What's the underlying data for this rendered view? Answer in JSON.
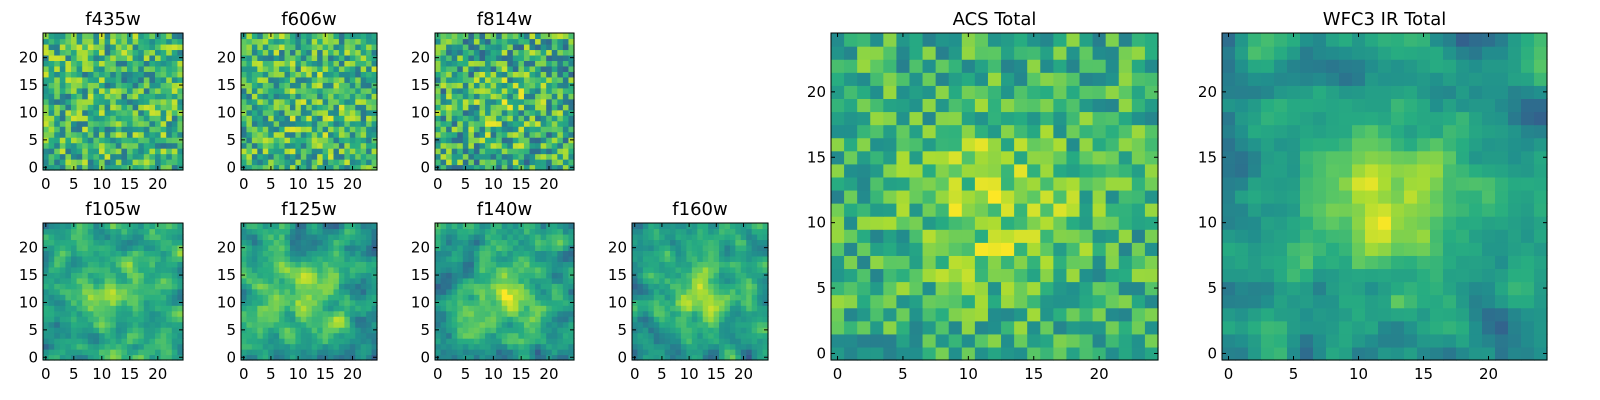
{
  "chart_data": [
    {
      "type": "heatmap",
      "title": "f435w",
      "xlim": [
        0,
        24
      ],
      "ylim": [
        0,
        24
      ],
      "xticks": [
        "0",
        "5",
        "10",
        "15",
        "20"
      ],
      "yticks": [
        "0",
        "5",
        "10",
        "15",
        "20"
      ],
      "colormap": "viridis",
      "value_range": [
        0,
        1
      ],
      "seed": 11,
      "blob": 0.0,
      "noise": 0.55,
      "base": 0.66,
      "blur": 0
    },
    {
      "type": "heatmap",
      "title": "f606w",
      "xlim": [
        0,
        24
      ],
      "ylim": [
        0,
        24
      ],
      "xticks": [
        "0",
        "5",
        "10",
        "15",
        "20"
      ],
      "yticks": [
        "0",
        "5",
        "10",
        "15",
        "20"
      ],
      "colormap": "viridis",
      "value_range": [
        0,
        1
      ],
      "seed": 23,
      "blob": 0.05,
      "noise": 0.55,
      "base": 0.66,
      "blur": 0
    },
    {
      "type": "heatmap",
      "title": "f814w",
      "xlim": [
        0,
        24
      ],
      "ylim": [
        0,
        24
      ],
      "xticks": [
        "0",
        "5",
        "10",
        "15",
        "20"
      ],
      "yticks": [
        "0",
        "5",
        "10",
        "15",
        "20"
      ],
      "colormap": "viridis",
      "value_range": [
        0,
        1
      ],
      "seed": 37,
      "blob": 0.1,
      "noise": 0.6,
      "base": 0.62,
      "blur": 0
    },
    {
      "type": "heatmap",
      "title": "f105w",
      "xlim": [
        0,
        24
      ],
      "ylim": [
        0,
        24
      ],
      "xticks": [
        "0",
        "5",
        "10",
        "15",
        "20"
      ],
      "yticks": [
        "0",
        "5",
        "10",
        "15",
        "20"
      ],
      "colormap": "viridis",
      "value_range": [
        0,
        1
      ],
      "seed": 41,
      "blob": 0.22,
      "noise": 0.45,
      "base": 0.58,
      "blur": 1
    },
    {
      "type": "heatmap",
      "title": "f125w",
      "xlim": [
        0,
        24
      ],
      "ylim": [
        0,
        24
      ],
      "xticks": [
        "0",
        "5",
        "10",
        "15",
        "20"
      ],
      "yticks": [
        "0",
        "5",
        "10",
        "15",
        "20"
      ],
      "colormap": "viridis",
      "value_range": [
        0,
        1
      ],
      "seed": 53,
      "blob": 0.22,
      "noise": 0.45,
      "base": 0.58,
      "blur": 1
    },
    {
      "type": "heatmap",
      "title": "f140w",
      "xlim": [
        0,
        24
      ],
      "ylim": [
        0,
        24
      ],
      "xticks": [
        "0",
        "5",
        "10",
        "15",
        "20"
      ],
      "yticks": [
        "0",
        "5",
        "10",
        "15",
        "20"
      ],
      "colormap": "viridis",
      "value_range": [
        0,
        1
      ],
      "seed": 67,
      "blob": 0.28,
      "noise": 0.45,
      "base": 0.56,
      "blur": 1
    },
    {
      "type": "heatmap",
      "title": "f160w",
      "xlim": [
        0,
        24
      ],
      "ylim": [
        0,
        24
      ],
      "xticks": [
        "0",
        "5",
        "10",
        "15",
        "20"
      ],
      "yticks": [
        "0",
        "5",
        "10",
        "15",
        "20"
      ],
      "colormap": "viridis",
      "value_range": [
        0,
        1
      ],
      "seed": 79,
      "blob": 0.32,
      "noise": 0.42,
      "base": 0.55,
      "blur": 1
    },
    {
      "type": "heatmap",
      "title": "ACS Total",
      "xlim": [
        0,
        24
      ],
      "ylim": [
        0,
        24
      ],
      "xticks": [
        "0",
        "5",
        "10",
        "15",
        "20"
      ],
      "yticks": [
        "0",
        "5",
        "10",
        "15",
        "20"
      ],
      "colormap": "viridis",
      "value_range": [
        0,
        1
      ],
      "seed": 97,
      "blob": 0.2,
      "noise": 0.42,
      "base": 0.64,
      "blur": 0
    },
    {
      "type": "heatmap",
      "title": "WFC3 IR Total",
      "xlim": [
        0,
        24
      ],
      "ylim": [
        0,
        24
      ],
      "xticks": [
        "0",
        "5",
        "10",
        "15",
        "20"
      ],
      "yticks": [
        "0",
        "5",
        "10",
        "15",
        "20"
      ],
      "colormap": "viridis",
      "value_range": [
        0,
        1
      ],
      "seed": 113,
      "blob": 0.35,
      "noise": 0.38,
      "base": 0.52,
      "blur": 1
    }
  ]
}
